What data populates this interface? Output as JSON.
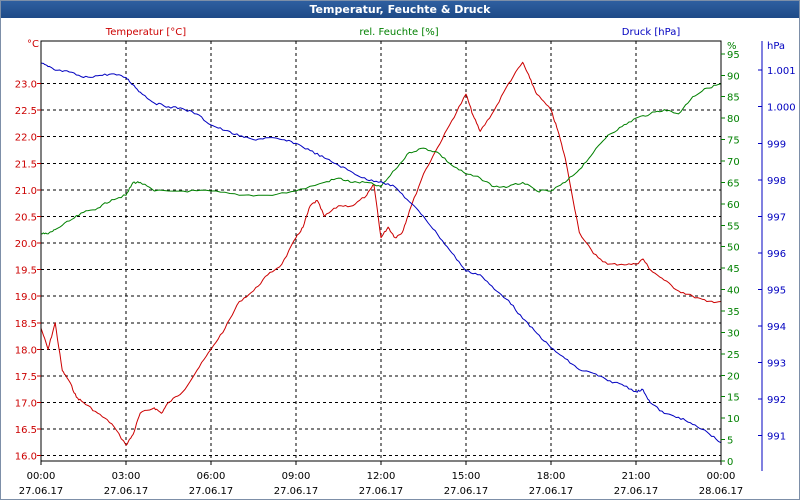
{
  "window": {
    "title": "Temperatur, Feuchte & Druck"
  },
  "colors": {
    "temperature": "#cc0000",
    "humidity": "#008000",
    "pressure": "#0000c0",
    "grid": "#000000",
    "background": "#ffffff",
    "titlebar": "#1e4a87"
  },
  "chart_data": {
    "type": "line",
    "grid": true,
    "x_axis": {
      "range": [
        "2017-06-27 00:00",
        "2017-06-28 00:00"
      ],
      "ticks": [
        {
          "time": "00:00",
          "date": "27.06.17"
        },
        {
          "time": "03:00",
          "date": "27.06.17"
        },
        {
          "time": "06:00",
          "date": "27.06.17"
        },
        {
          "time": "09:00",
          "date": "27.06.17"
        },
        {
          "time": "12:00",
          "date": "27.06.17"
        },
        {
          "time": "15:00",
          "date": "27.06.17"
        },
        {
          "time": "18:00",
          "date": "27.06.17"
        },
        {
          "time": "21:00",
          "date": "27.06.17"
        },
        {
          "time": "00:00",
          "date": "28.06.17"
        }
      ]
    },
    "y_axes": [
      {
        "id": "temp",
        "unit": "°C",
        "range": [
          15.9,
          23.8
        ],
        "ticks": [
          "16.0",
          "16.5",
          "17.0",
          "17.5",
          "18.0",
          "18.5",
          "19.0",
          "19.5",
          "20.0",
          "20.5",
          "21.0",
          "21.5",
          "22.0",
          "22.5",
          "23.0"
        ]
      },
      {
        "id": "hum",
        "unit": "%",
        "range": [
          0,
          98
        ],
        "ticks": [
          "0",
          "5",
          "10",
          "15",
          "20",
          "25",
          "30",
          "35",
          "40",
          "45",
          "50",
          "55",
          "60",
          "65",
          "70",
          "75",
          "80",
          "85",
          "90",
          "95"
        ],
        "top_label": "%"
      },
      {
        "id": "press",
        "unit": "hPa",
        "range": [
          990.3,
          1001.8
        ],
        "ticks": [
          "991",
          "992",
          "993",
          "994",
          "995",
          "996",
          "997",
          "998",
          "999",
          "1.000",
          "1.001"
        ]
      }
    ],
    "series": [
      {
        "name": "Temperatur [°C]",
        "axis": "temp",
        "color": "#cc0000",
        "x": [
          "00:00",
          "00:15",
          "00:30",
          "00:45",
          "01:00",
          "01:15",
          "01:30",
          "02:00",
          "02:30",
          "03:00",
          "03:15",
          "03:30",
          "04:00",
          "04:15",
          "04:30",
          "05:00",
          "05:30",
          "06:00",
          "06:30",
          "07:00",
          "07:30",
          "08:00",
          "08:30",
          "09:00",
          "09:15",
          "09:30",
          "09:45",
          "10:00",
          "10:30",
          "11:00",
          "11:30",
          "11:45",
          "12:00",
          "12:15",
          "12:30",
          "12:45",
          "13:00",
          "13:30",
          "14:00",
          "14:30",
          "15:00",
          "15:15",
          "15:30",
          "16:00",
          "16:30",
          "17:00",
          "17:15",
          "17:30",
          "18:00",
          "18:15",
          "18:30",
          "19:00",
          "19:30",
          "20:00",
          "20:30",
          "21:00",
          "21:15",
          "21:30",
          "22:00",
          "22:30",
          "23:00",
          "23:30",
          "00:00"
        ],
        "values": [
          18.4,
          18.0,
          18.5,
          17.6,
          17.4,
          17.1,
          17.0,
          16.8,
          16.6,
          16.2,
          16.4,
          16.8,
          16.9,
          16.8,
          17.0,
          17.2,
          17.6,
          18.0,
          18.4,
          18.9,
          19.1,
          19.4,
          19.6,
          20.1,
          20.3,
          20.7,
          20.8,
          20.5,
          20.7,
          20.7,
          20.9,
          21.1,
          20.1,
          20.3,
          20.1,
          20.2,
          20.6,
          21.3,
          21.8,
          22.3,
          22.8,
          22.4,
          22.1,
          22.5,
          23.0,
          23.4,
          23.1,
          22.8,
          22.5,
          22.1,
          21.6,
          20.2,
          19.8,
          19.6,
          19.6,
          19.6,
          19.7,
          19.5,
          19.3,
          19.1,
          19.0,
          18.9,
          18.9
        ]
      },
      {
        "name": "rel. Feuchte [%]",
        "axis": "hum",
        "color": "#008000",
        "x": [
          "00:00",
          "00:15",
          "00:30",
          "01:00",
          "01:30",
          "02:00",
          "02:30",
          "03:00",
          "03:15",
          "03:30",
          "04:00",
          "05:00",
          "06:00",
          "07:00",
          "08:00",
          "09:00",
          "10:00",
          "10:30",
          "11:00",
          "11:30",
          "12:00",
          "12:30",
          "13:00",
          "13:30",
          "14:00",
          "14:30",
          "15:00",
          "15:30",
          "16:00",
          "16:30",
          "17:00",
          "17:30",
          "18:00",
          "18:30",
          "19:00",
          "19:30",
          "20:00",
          "20:30",
          "21:00",
          "21:30",
          "22:00",
          "22:30",
          "23:00",
          "23:30",
          "00:00"
        ],
        "values": [
          53,
          53,
          54,
          56,
          58,
          59,
          61,
          62,
          65,
          65,
          63,
          63,
          63,
          62,
          62,
          63,
          65,
          66,
          65,
          65,
          64,
          68,
          72,
          73,
          72,
          69,
          67,
          66,
          64,
          64,
          65,
          63,
          63,
          65,
          68,
          72,
          76,
          78,
          80,
          81,
          82,
          81,
          85,
          87,
          88
        ]
      },
      {
        "name": "Druck [hPa]",
        "axis": "press",
        "color": "#0000c0",
        "x": [
          "00:00",
          "00:15",
          "00:30",
          "01:00",
          "01:30",
          "02:00",
          "02:30",
          "03:00",
          "03:15",
          "03:30",
          "04:00",
          "04:30",
          "05:00",
          "05:30",
          "06:00",
          "06:30",
          "07:00",
          "07:30",
          "08:00",
          "08:30",
          "09:00",
          "09:30",
          "10:00",
          "10:30",
          "11:00",
          "11:30",
          "12:00",
          "12:30",
          "13:00",
          "13:30",
          "14:00",
          "14:30",
          "15:00",
          "15:30",
          "16:00",
          "16:30",
          "17:00",
          "17:30",
          "18:00",
          "18:30",
          "19:00",
          "19:30",
          "20:00",
          "20:30",
          "21:00",
          "21:15",
          "21:30",
          "22:00",
          "22:30",
          "23:00",
          "23:30",
          "00:00"
        ],
        "values": [
          1001.2,
          1001.1,
          1001.0,
          1000.95,
          1000.8,
          1000.85,
          1000.9,
          1000.8,
          1000.6,
          1000.4,
          1000.1,
          1000.0,
          999.95,
          999.8,
          999.5,
          999.35,
          999.2,
          999.1,
          999.15,
          999.1,
          999.0,
          998.8,
          998.6,
          998.4,
          998.2,
          998.0,
          997.95,
          997.8,
          997.4,
          997.0,
          996.5,
          996.0,
          995.5,
          995.4,
          995.0,
          994.7,
          994.2,
          993.8,
          993.4,
          993.1,
          992.8,
          992.7,
          992.5,
          992.4,
          992.2,
          992.25,
          991.9,
          991.6,
          991.5,
          991.3,
          991.1,
          990.8
        ]
      }
    ]
  }
}
